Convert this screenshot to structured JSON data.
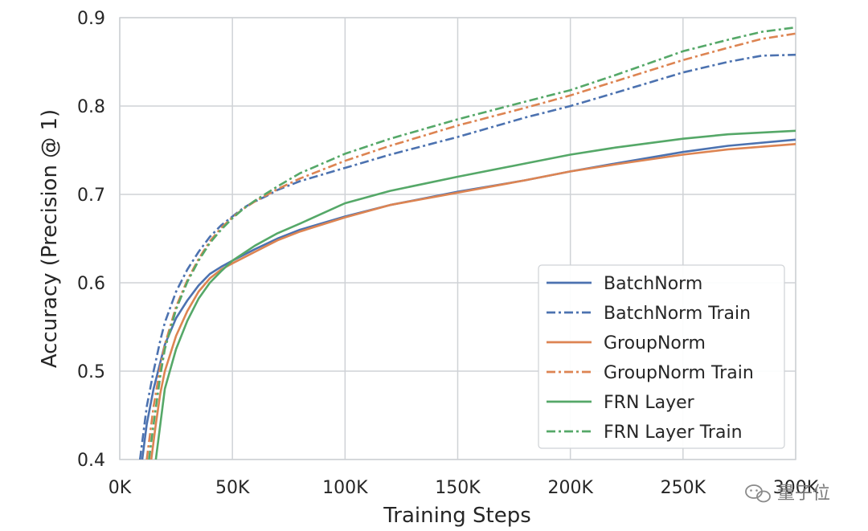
{
  "chart_data": {
    "type": "line",
    "title": "",
    "xlabel": "Training Steps",
    "ylabel": "Accuracy (Precision @ 1)",
    "xlim": [
      0,
      300000
    ],
    "ylim": [
      0.4,
      0.9
    ],
    "x_ticks": [
      0,
      50000,
      100000,
      150000,
      200000,
      250000,
      300000
    ],
    "x_tick_labels": [
      "0K",
      "50K",
      "100K",
      "150K",
      "200K",
      "250K",
      "300K"
    ],
    "y_ticks": [
      0.4,
      0.5,
      0.6,
      0.7,
      0.8,
      0.9
    ],
    "y_tick_labels": [
      "0.4",
      "0.5",
      "0.6",
      "0.7",
      "0.8",
      "0.9"
    ],
    "grid": true,
    "legend_position": "bottom-right",
    "series": [
      {
        "name": "BatchNorm",
        "color": "#4c72b0",
        "style": "solid",
        "x": [
          10000,
          12000,
          15000,
          18000,
          20000,
          25000,
          30000,
          35000,
          40000,
          45000,
          50000,
          60000,
          70000,
          80000,
          100000,
          120000,
          150000,
          180000,
          200000,
          220000,
          250000,
          270000,
          300000
        ],
        "y": [
          0.4,
          0.44,
          0.48,
          0.51,
          0.53,
          0.56,
          0.58,
          0.597,
          0.61,
          0.618,
          0.625,
          0.638,
          0.65,
          0.66,
          0.675,
          0.688,
          0.703,
          0.716,
          0.726,
          0.735,
          0.748,
          0.755,
          0.762
        ]
      },
      {
        "name": "BatchNorm Train",
        "color": "#4c72b0",
        "style": "dashdot",
        "x": [
          9000,
          12000,
          15000,
          18000,
          20000,
          25000,
          30000,
          35000,
          40000,
          45000,
          50000,
          55000,
          60000,
          65000,
          70000,
          80000,
          100000,
          120000,
          150000,
          180000,
          200000,
          220000,
          250000,
          270000,
          285000,
          300000
        ],
        "y": [
          0.4,
          0.46,
          0.5,
          0.535,
          0.555,
          0.59,
          0.615,
          0.635,
          0.652,
          0.665,
          0.675,
          0.685,
          0.692,
          0.698,
          0.705,
          0.715,
          0.73,
          0.745,
          0.765,
          0.787,
          0.8,
          0.815,
          0.838,
          0.85,
          0.857,
          0.858
        ]
      },
      {
        "name": "GroupNorm",
        "color": "#dd8452",
        "style": "solid",
        "x": [
          14000,
          16000,
          18000,
          20000,
          25000,
          30000,
          35000,
          40000,
          45000,
          50000,
          60000,
          70000,
          80000,
          100000,
          120000,
          150000,
          180000,
          200000,
          220000,
          250000,
          270000,
          300000
        ],
        "y": [
          0.4,
          0.44,
          0.475,
          0.5,
          0.54,
          0.568,
          0.59,
          0.605,
          0.615,
          0.622,
          0.635,
          0.648,
          0.658,
          0.674,
          0.688,
          0.702,
          0.716,
          0.726,
          0.734,
          0.745,
          0.751,
          0.757
        ]
      },
      {
        "name": "GroupNorm Train",
        "color": "#dd8452",
        "style": "dashdot",
        "x": [
          12000,
          15000,
          18000,
          20000,
          25000,
          30000,
          35000,
          40000,
          45000,
          50000,
          55000,
          60000,
          65000,
          70000,
          80000,
          100000,
          120000,
          150000,
          180000,
          200000,
          220000,
          250000,
          270000,
          285000,
          300000
        ],
        "y": [
          0.4,
          0.46,
          0.505,
          0.53,
          0.573,
          0.603,
          0.627,
          0.647,
          0.662,
          0.674,
          0.684,
          0.692,
          0.699,
          0.706,
          0.718,
          0.738,
          0.755,
          0.778,
          0.798,
          0.812,
          0.828,
          0.852,
          0.866,
          0.876,
          0.882
        ]
      },
      {
        "name": "FRN Layer",
        "color": "#55a868",
        "style": "solid",
        "x": [
          16000,
          18000,
          20000,
          25000,
          30000,
          35000,
          40000,
          45000,
          50000,
          60000,
          70000,
          80000,
          100000,
          120000,
          150000,
          180000,
          200000,
          220000,
          250000,
          270000,
          300000
        ],
        "y": [
          0.4,
          0.44,
          0.48,
          0.525,
          0.557,
          0.582,
          0.6,
          0.613,
          0.625,
          0.642,
          0.656,
          0.667,
          0.69,
          0.704,
          0.72,
          0.735,
          0.745,
          0.753,
          0.763,
          0.768,
          0.772
        ]
      },
      {
        "name": "FRN Layer Train",
        "color": "#55a868",
        "style": "dashdot",
        "x": [
          13000,
          15000,
          18000,
          20000,
          25000,
          30000,
          35000,
          40000,
          45000,
          50000,
          55000,
          60000,
          65000,
          70000,
          80000,
          100000,
          120000,
          150000,
          180000,
          200000,
          220000,
          250000,
          270000,
          285000,
          300000
        ],
        "y": [
          0.4,
          0.44,
          0.495,
          0.525,
          0.57,
          0.601,
          0.625,
          0.645,
          0.66,
          0.673,
          0.684,
          0.693,
          0.701,
          0.709,
          0.724,
          0.746,
          0.763,
          0.785,
          0.805,
          0.818,
          0.835,
          0.862,
          0.875,
          0.884,
          0.889
        ]
      }
    ]
  },
  "watermark": {
    "text": "量子位",
    "icon": "wechat-icon"
  }
}
